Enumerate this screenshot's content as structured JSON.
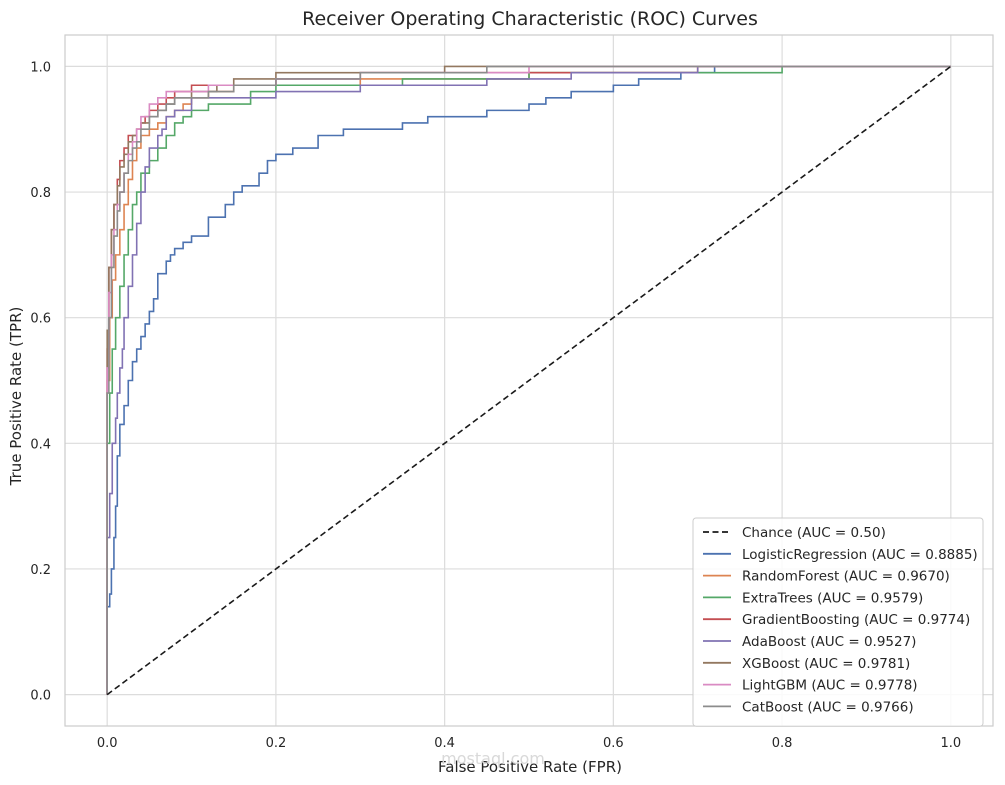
{
  "watermark": {
    "text": "mostaql.com"
  },
  "chart_data": {
    "type": "line",
    "title": "Receiver Operating Characteristic (ROC) Curves",
    "xlabel": "False Positive Rate (FPR)",
    "ylabel": "True Positive Rate (TPR)",
    "xlim": [
      -0.05,
      1.05
    ],
    "ylim": [
      -0.05,
      1.05
    ],
    "xticks": [
      0.0,
      0.2,
      0.4,
      0.6,
      0.8,
      1.0
    ],
    "yticks": [
      0.0,
      0.2,
      0.4,
      0.6,
      0.8,
      1.0
    ],
    "xtick_labels": [
      "0.0",
      "0.2",
      "0.4",
      "0.6",
      "0.8",
      "1.0"
    ],
    "ytick_labels": [
      "0.0",
      "0.2",
      "0.4",
      "0.6",
      "0.8",
      "1.0"
    ],
    "grid": true,
    "legend_position": "lower-right",
    "series": [
      {
        "name": "Chance (AUC = 0.50)",
        "color": "#1a1a1a",
        "dashed": true,
        "x": [
          0.0,
          1.0
        ],
        "y": [
          0.0,
          1.0
        ]
      },
      {
        "name": "LogisticRegression (AUC = 0.8885)",
        "color": "#4c72b0",
        "dashed": false,
        "x": [
          0.0,
          0.003,
          0.005,
          0.008,
          0.01,
          0.012,
          0.015,
          0.02,
          0.025,
          0.03,
          0.035,
          0.04,
          0.045,
          0.05,
          0.055,
          0.06,
          0.07,
          0.075,
          0.08,
          0.09,
          0.1,
          0.12,
          0.14,
          0.15,
          0.16,
          0.18,
          0.19,
          0.2,
          0.22,
          0.25,
          0.28,
          0.3,
          0.35,
          0.38,
          0.42,
          0.45,
          0.5,
          0.52,
          0.55,
          0.6,
          0.63,
          0.68,
          0.72,
          0.78,
          1.0
        ],
        "y": [
          0.0,
          0.14,
          0.16,
          0.2,
          0.25,
          0.3,
          0.38,
          0.43,
          0.46,
          0.5,
          0.53,
          0.55,
          0.57,
          0.59,
          0.61,
          0.63,
          0.67,
          0.69,
          0.7,
          0.71,
          0.72,
          0.73,
          0.76,
          0.78,
          0.8,
          0.81,
          0.83,
          0.85,
          0.86,
          0.87,
          0.89,
          0.9,
          0.9,
          0.91,
          0.92,
          0.92,
          0.93,
          0.94,
          0.95,
          0.96,
          0.97,
          0.98,
          0.99,
          1.0,
          1.0
        ]
      },
      {
        "name": "RandomForest (AUC = 0.9670)",
        "color": "#dd8452",
        "dashed": false,
        "x": [
          0.0,
          0.003,
          0.006,
          0.01,
          0.015,
          0.02,
          0.025,
          0.03,
          0.035,
          0.04,
          0.05,
          0.06,
          0.07,
          0.08,
          0.09,
          0.1,
          0.12,
          0.15,
          0.2,
          0.3,
          0.5,
          0.7,
          0.8,
          1.0
        ],
        "y": [
          0.0,
          0.5,
          0.6,
          0.66,
          0.7,
          0.74,
          0.78,
          0.82,
          0.85,
          0.87,
          0.89,
          0.9,
          0.91,
          0.92,
          0.93,
          0.94,
          0.95,
          0.96,
          0.97,
          0.97,
          0.98,
          0.99,
          1.0,
          1.0
        ]
      },
      {
        "name": "ExtraTrees (AUC = 0.9579)",
        "color": "#55a868",
        "dashed": false,
        "x": [
          0.0,
          0.003,
          0.006,
          0.01,
          0.015,
          0.02,
          0.025,
          0.03,
          0.035,
          0.04,
          0.05,
          0.06,
          0.07,
          0.08,
          0.09,
          0.1,
          0.12,
          0.14,
          0.17,
          0.2,
          0.25,
          0.35,
          0.5,
          0.65,
          0.8,
          1.0
        ],
        "y": [
          0.0,
          0.4,
          0.48,
          0.55,
          0.6,
          0.65,
          0.7,
          0.74,
          0.78,
          0.8,
          0.83,
          0.85,
          0.87,
          0.89,
          0.91,
          0.92,
          0.93,
          0.94,
          0.94,
          0.96,
          0.97,
          0.97,
          0.98,
          0.99,
          0.99,
          1.0
        ]
      },
      {
        "name": "GradientBoosting (AUC = 0.9774)",
        "color": "#c44e52",
        "dashed": false,
        "x": [
          0.0,
          0.002,
          0.005,
          0.008,
          0.012,
          0.015,
          0.02,
          0.025,
          0.03,
          0.035,
          0.04,
          0.045,
          0.05,
          0.06,
          0.07,
          0.08,
          0.1,
          0.15,
          0.2,
          0.3,
          0.5,
          0.7,
          0.8,
          1.0
        ],
        "y": [
          0.0,
          0.55,
          0.68,
          0.74,
          0.78,
          0.82,
          0.85,
          0.87,
          0.89,
          0.89,
          0.9,
          0.91,
          0.92,
          0.93,
          0.94,
          0.95,
          0.96,
          0.97,
          0.97,
          0.98,
          0.99,
          0.99,
          1.0,
          1.0
        ]
      },
      {
        "name": "AdaBoost (AUC = 0.9527)",
        "color": "#8172b3",
        "dashed": false,
        "x": [
          0.0,
          0.003,
          0.006,
          0.01,
          0.012,
          0.015,
          0.018,
          0.02,
          0.025,
          0.03,
          0.035,
          0.04,
          0.045,
          0.05,
          0.06,
          0.065,
          0.07,
          0.08,
          0.09,
          0.1,
          0.12,
          0.2,
          0.3,
          0.45,
          0.55,
          0.7,
          0.8,
          1.0
        ],
        "y": [
          0.0,
          0.25,
          0.32,
          0.4,
          0.44,
          0.48,
          0.52,
          0.55,
          0.6,
          0.65,
          0.7,
          0.75,
          0.8,
          0.84,
          0.87,
          0.89,
          0.9,
          0.92,
          0.93,
          0.93,
          0.95,
          0.95,
          0.96,
          0.97,
          0.98,
          0.99,
          1.0,
          1.0
        ]
      },
      {
        "name": "XGBoost (AUC = 0.9781)",
        "color": "#937860",
        "dashed": false,
        "x": [
          0.0,
          0.002,
          0.005,
          0.008,
          0.012,
          0.015,
          0.02,
          0.025,
          0.03,
          0.035,
          0.04,
          0.05,
          0.06,
          0.07,
          0.08,
          0.1,
          0.13,
          0.15,
          0.2,
          0.28,
          0.4,
          0.6,
          0.8,
          1.0
        ],
        "y": [
          0.0,
          0.58,
          0.68,
          0.74,
          0.78,
          0.81,
          0.84,
          0.86,
          0.88,
          0.89,
          0.9,
          0.91,
          0.92,
          0.93,
          0.94,
          0.95,
          0.96,
          0.97,
          0.98,
          0.99,
          0.99,
          1.0,
          1.0,
          1.0
        ]
      },
      {
        "name": "LightGBM (AUC = 0.9778)",
        "color": "#da8bc3",
        "dashed": false,
        "x": [
          0.0,
          0.002,
          0.005,
          0.008,
          0.012,
          0.015,
          0.02,
          0.025,
          0.03,
          0.035,
          0.04,
          0.05,
          0.06,
          0.07,
          0.08,
          0.1,
          0.12,
          0.15,
          0.2,
          0.3,
          0.5,
          0.75,
          1.0
        ],
        "y": [
          0.0,
          0.52,
          0.64,
          0.7,
          0.74,
          0.78,
          0.8,
          0.83,
          0.86,
          0.88,
          0.9,
          0.92,
          0.94,
          0.95,
          0.96,
          0.96,
          0.96,
          0.97,
          0.97,
          0.98,
          0.99,
          1.0,
          1.0
        ]
      },
      {
        "name": "CatBoost (AUC = 0.9766)",
        "color": "#8c8c8c",
        "dashed": false,
        "x": [
          0.0,
          0.002,
          0.005,
          0.008,
          0.012,
          0.015,
          0.02,
          0.025,
          0.03,
          0.035,
          0.04,
          0.05,
          0.06,
          0.07,
          0.08,
          0.1,
          0.12,
          0.15,
          0.2,
          0.3,
          0.45,
          0.6,
          0.8,
          1.0
        ],
        "y": [
          0.0,
          0.48,
          0.6,
          0.68,
          0.73,
          0.77,
          0.8,
          0.83,
          0.85,
          0.87,
          0.88,
          0.9,
          0.92,
          0.93,
          0.94,
          0.95,
          0.95,
          0.96,
          0.97,
          0.98,
          0.99,
          1.0,
          1.0,
          1.0
        ]
      }
    ]
  }
}
